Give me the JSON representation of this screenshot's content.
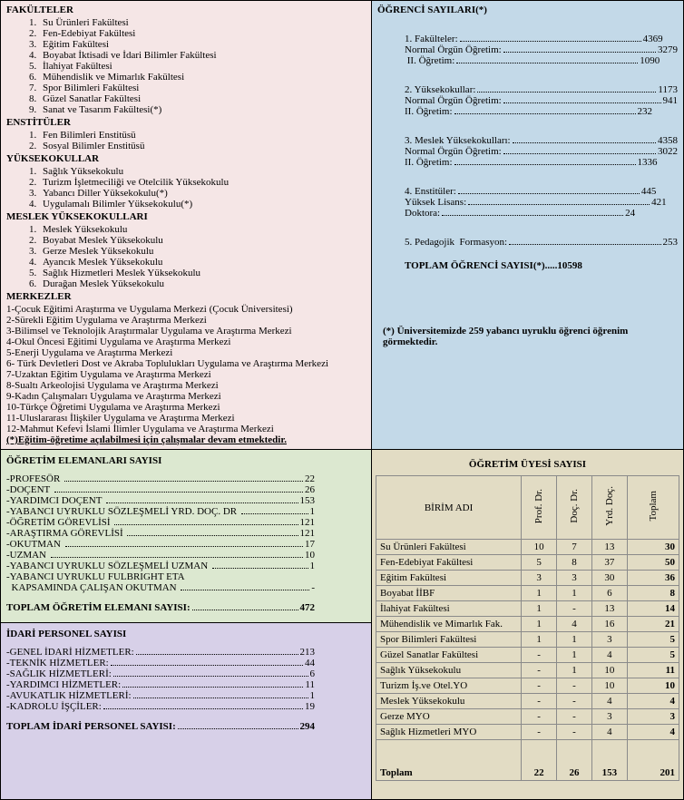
{
  "left1": {
    "fakulteler_title": "FAKÜLTELER",
    "fakulteler": [
      "Su Ürünleri Fakültesi",
      "Fen-Edebiyat Fakültesi",
      "Eğitim Fakültesi",
      "Boyabat İktisadi ve İdari Bilimler Fakültesi",
      "İlahiyat Fakültesi",
      "Mühendislik ve Mimarlık Fakültesi",
      "Spor Bilimleri Fakültesi",
      "Güzel Sanatlar Fakültesi",
      "Sanat ve Tasarım Fakültesi(*)"
    ],
    "enstituler_title": "ENSTİTÜLER",
    "enstituler": [
      "Fen Bilimleri Enstitüsü",
      "Sosyal Bilimler Enstitüsü"
    ],
    "yuksekokullar_title": "YÜKSEKOKULLAR",
    "yuksekokullar": [
      "Sağlık Yüksekokulu",
      "Turizm İşletmeciliği ve Otelcilik Yüksekokulu",
      "Yabancı Diller Yüksekokulu(*)",
      "Uygulamalı Bilimler Yüksekokulu(*)"
    ],
    "myo_title": "MESLEK YÜKSEKOKULLARI",
    "myo": [
      "Meslek Yüksekokulu",
      "Boyabat Meslek Yüksekokulu",
      "Gerze Meslek Yüksekokulu",
      "Ayancık Meslek Yüksekokulu",
      "Sağlık Hizmetleri Meslek Yüksekokulu",
      "Durağan Meslek Yüksekokulu"
    ],
    "merkezler_title": "MERKEZLER",
    "merkezler": [
      "1-Çocuk Eğitimi Araştırma ve Uygulama Merkezi (Çocuk Üniversitesi)",
      "2-Sürekli Eğitim Uygulama ve Araştırma Merkezi",
      "3-Bilimsel ve Teknolojik Araştırmalar Uygulama ve Araştırma Merkezi",
      "4-Okul Öncesi Eğitimi Uygulama ve Araştırma Merkezi",
      "5-Enerji Uygulama ve Araştırma Merkezi",
      "6- Türk Devletleri Dost ve Akraba Toplulukları Uygulama ve Araştırma Merkezi",
      "7-Uzaktan Eğitim Uygulama ve Araştırma Merkezi",
      "8-Sualtı Arkeolojisi Uygulama ve Araştırma Merkezi",
      "9-Kadın Çalışmaları Uygulama ve Araştırma Merkezi",
      "10-Türkçe Öğretimi Uygulama ve Araştırma Merkezi",
      "11-Uluslararası İlişkiler Uygulama ve Araştırma Merkezi",
      "12-Mahmut Kefevi İslami İlimler Uygulama ve Araştırma Merkezi"
    ],
    "footnote": "(*)Eğitim-öğretime açılabilmesi için çalışmalar devam etmektedir."
  },
  "right1": {
    "title": "ÖĞRENCİ SAYILARI(*)",
    "blocks": [
      {
        "lines": [
          {
            "lbl": "1. Fakülteler:",
            "val": "4369"
          },
          {
            "lbl": "Normal Örgün Öğretim:",
            "val": "3279"
          },
          {
            "lbl": " II. Öğretim:",
            "val": "1090"
          }
        ]
      },
      {
        "lines": [
          {
            "lbl": "2. Yüksekokullar:",
            "val": "1173"
          },
          {
            "lbl": "Normal Örgün Öğretim:",
            "val": "941"
          },
          {
            "lbl": "II. Öğretim:",
            "val": "232"
          }
        ]
      },
      {
        "lines": [
          {
            "lbl": "3. Meslek Yüksekokulları:",
            "val": "4358"
          },
          {
            "lbl": "Normal Örgün Öğretim:",
            "val": "3022"
          },
          {
            "lbl": "II. Öğretim:",
            "val": "1336"
          }
        ]
      },
      {
        "lines": [
          {
            "lbl": "4. Enstitüler:",
            "val": "445"
          },
          {
            "lbl": "Yüksek Lisans:",
            "val": "421"
          },
          {
            "lbl": "Doktora:",
            "val": "24"
          }
        ]
      },
      {
        "lines": [
          {
            "lbl": "5. Pedagojik  Formasyon:",
            "val": "253"
          }
        ]
      }
    ],
    "total_label": "TOPLAM ÖĞRENCİ SAYISI(*)",
    "total_value": "10598",
    "note": "(*) Üniversitemizde 259 yabancı uyruklu öğrenci öğrenim görmektedir."
  },
  "left2a": {
    "title": "ÖĞRETİM ELEMANLARI SAYISI",
    "rows": [
      {
        "lbl": "-PROFESÖR ",
        "val": "22"
      },
      {
        "lbl": "-DOÇENT ",
        "val": "26"
      },
      {
        "lbl": "-YARDIMCI DOÇENT ",
        "val": "153"
      },
      {
        "lbl": "-YABANCI UYRUKLU SÖZLEŞMELİ YRD. DOÇ. DR ",
        "val": "1"
      },
      {
        "lbl": "-ÖĞRETİM GÖREVLİSİ ",
        "val": "121"
      },
      {
        "lbl": "-ARAŞTIRMA GÖREVLİSİ ",
        "val": "121"
      },
      {
        "lbl": "-OKUTMAN ",
        "val": "17"
      },
      {
        "lbl": "-UZMAN ",
        "val": "10"
      },
      {
        "lbl": "-YABANCI UYRUKLU SÖZLEŞMELİ UZMAN ",
        "val": "1"
      },
      {
        "lbl": "-YABANCI UYRUKLU FULBRIGHT ETA\n  KAPSAMINDA ÇALIŞAN OKUTMAN ",
        "val": "-"
      }
    ],
    "total_label": "TOPLAM ÖĞRETİM ELEMANI SAYISI:",
    "total_value": "472"
  },
  "left2b": {
    "title": "İDARİ PERSONEL SAYISI",
    "rows": [
      {
        "lbl": "-GENEL İDARİ HİZMETLER:",
        "val": "213"
      },
      {
        "lbl": "-TEKNİK HİZMETLER:",
        "val": "44"
      },
      {
        "lbl": "-SAĞLIK HİZMETLERİ:",
        "val": "6"
      },
      {
        "lbl": "-YARDIMCI HİZMETLER:",
        "val": "11"
      },
      {
        "lbl": "-AVUKATLIK HİZMETLERİ:",
        "val": "1"
      },
      {
        "lbl": "-KADROLU İŞÇİLER:",
        "val": "19"
      }
    ],
    "total_label": "TOPLAM İDARİ PERSONEL SAYISI:",
    "total_value": "294"
  },
  "right2": {
    "title": "ÖĞRETİM ÜYESİ SAYISI",
    "col0": "BİRİM ADI",
    "cols": [
      "Prof. Dr.",
      "Doç. Dr.",
      "Yrd. Doç.",
      "Toplam"
    ],
    "rows": [
      {
        "n": "Su Ürünleri Fakültesi",
        "c": [
          "10",
          "7",
          "13",
          "30"
        ]
      },
      {
        "n": "Fen-Edebiyat Fakültesi",
        "c": [
          "5",
          "8",
          "37",
          "50"
        ]
      },
      {
        "n": "Eğitim Fakültesi",
        "c": [
          "3",
          "3",
          "30",
          "36"
        ]
      },
      {
        "n": "Boyabat İİBF",
        "c": [
          "1",
          "1",
          "6",
          "8"
        ]
      },
      {
        "n": "İlahiyat Fakültesi",
        "c": [
          "1",
          "-",
          "13",
          "14"
        ]
      },
      {
        "n": "Mühendislik ve Mimarlık Fak.",
        "c": [
          "1",
          "4",
          "16",
          "21"
        ]
      },
      {
        "n": "Spor Bilimleri Fakültesi",
        "c": [
          "1",
          "1",
          "3",
          "5"
        ]
      },
      {
        "n": "Güzel Sanatlar Fakültesi",
        "c": [
          "-",
          "1",
          "4",
          "5"
        ]
      },
      {
        "n": "Sağlık Yüksekokulu",
        "c": [
          "-",
          "1",
          "10",
          "11"
        ]
      },
      {
        "n": "Turizm İş.ve Otel.YO",
        "c": [
          "-",
          "-",
          "10",
          "10"
        ]
      },
      {
        "n": "Meslek Yüksekokulu",
        "c": [
          "-",
          "-",
          "4",
          "4"
        ]
      },
      {
        "n": "Gerze MYO",
        "c": [
          "-",
          "-",
          "3",
          "3"
        ]
      },
      {
        "n": "Sağlık Hizmetleri MYO",
        "c": [
          "-",
          "-",
          "4",
          "4"
        ]
      }
    ],
    "total": {
      "n": "Toplam",
      "c": [
        "22",
        "26",
        "153",
        "201"
      ]
    }
  }
}
